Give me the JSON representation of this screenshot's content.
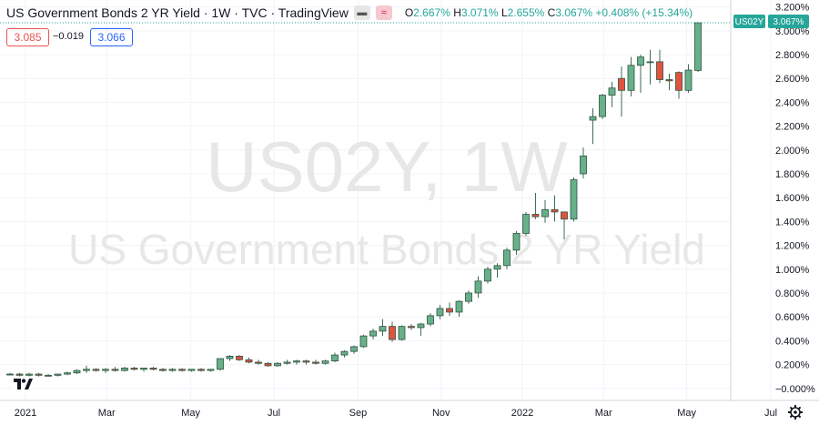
{
  "header": {
    "title": "US Government Bonds 2 YR Yield · 1W · TVC · TradingView",
    "ohlc": {
      "o_label": "O",
      "o": "2.667%",
      "h_label": "H",
      "h": "3.071%",
      "l_label": "L",
      "l": "2.655%",
      "c_label": "C",
      "c": "3.067%",
      "change": "+0.408% (+15.34%)"
    },
    "sell_price": "3.085",
    "spread": "−0.019",
    "buy_price": "3.066"
  },
  "watermark": {
    "symbol_line": "US02Y, 1W",
    "name_line": "US Government Bonds 2 YR Yield"
  },
  "price_tag": {
    "symbol": "US02Y",
    "value": "3.067%"
  },
  "colors": {
    "up": "#26a69a",
    "up_fill": "#4caf84",
    "down": "#ef5350",
    "tag": "#26a69a"
  },
  "icons": {
    "logo": "tradingview-logo-icon",
    "settings": "gear-icon"
  },
  "chart_data": {
    "type": "candlestick",
    "y_ticks": [
      "3.200%",
      "3.000%",
      "2.800%",
      "2.600%",
      "2.400%",
      "2.200%",
      "2.000%",
      "1.800%",
      "1.600%",
      "1.400%",
      "1.200%",
      "1.000%",
      "0.800%",
      "0.600%",
      "0.400%",
      "0.200%",
      "−0.000%"
    ],
    "x_ticks": [
      "2021",
      "Mar",
      "May",
      "Jul",
      "Sep",
      "Nov",
      "2022",
      "Mar",
      "May",
      "Jul"
    ],
    "ylim": [
      -0.04,
      3.22
    ],
    "candles": [
      [
        0.12,
        0.13,
        0.11,
        0.12
      ],
      [
        0.12,
        0.13,
        0.1,
        0.11
      ],
      [
        0.11,
        0.13,
        0.1,
        0.12
      ],
      [
        0.12,
        0.13,
        0.1,
        0.11
      ],
      [
        0.11,
        0.12,
        0.1,
        0.11
      ],
      [
        0.11,
        0.12,
        0.1,
        0.12
      ],
      [
        0.12,
        0.14,
        0.11,
        0.13
      ],
      [
        0.13,
        0.16,
        0.12,
        0.15
      ],
      [
        0.15,
        0.19,
        0.13,
        0.16
      ],
      [
        0.16,
        0.17,
        0.14,
        0.15
      ],
      [
        0.15,
        0.17,
        0.13,
        0.16
      ],
      [
        0.16,
        0.18,
        0.14,
        0.15
      ],
      [
        0.15,
        0.18,
        0.14,
        0.17
      ],
      [
        0.17,
        0.18,
        0.15,
        0.16
      ],
      [
        0.16,
        0.17,
        0.14,
        0.17
      ],
      [
        0.17,
        0.18,
        0.15,
        0.16
      ],
      [
        0.16,
        0.17,
        0.14,
        0.15
      ],
      [
        0.15,
        0.17,
        0.14,
        0.16
      ],
      [
        0.16,
        0.17,
        0.14,
        0.15
      ],
      [
        0.15,
        0.16,
        0.14,
        0.16
      ],
      [
        0.16,
        0.17,
        0.14,
        0.15
      ],
      [
        0.15,
        0.16,
        0.14,
        0.16
      ],
      [
        0.16,
        0.25,
        0.15,
        0.25
      ],
      [
        0.25,
        0.28,
        0.23,
        0.27
      ],
      [
        0.27,
        0.28,
        0.23,
        0.24
      ],
      [
        0.24,
        0.26,
        0.21,
        0.22
      ],
      [
        0.22,
        0.24,
        0.2,
        0.21
      ],
      [
        0.21,
        0.22,
        0.18,
        0.19
      ],
      [
        0.19,
        0.22,
        0.18,
        0.21
      ],
      [
        0.21,
        0.24,
        0.2,
        0.22
      ],
      [
        0.22,
        0.24,
        0.2,
        0.23
      ],
      [
        0.23,
        0.24,
        0.2,
        0.22
      ],
      [
        0.22,
        0.24,
        0.2,
        0.21
      ],
      [
        0.21,
        0.24,
        0.2,
        0.23
      ],
      [
        0.23,
        0.3,
        0.22,
        0.28
      ],
      [
        0.28,
        0.32,
        0.26,
        0.31
      ],
      [
        0.31,
        0.36,
        0.29,
        0.35
      ],
      [
        0.35,
        0.45,
        0.34,
        0.44
      ],
      [
        0.44,
        0.5,
        0.41,
        0.48
      ],
      [
        0.48,
        0.58,
        0.44,
        0.52
      ],
      [
        0.52,
        0.56,
        0.39,
        0.41
      ],
      [
        0.41,
        0.53,
        0.4,
        0.52
      ],
      [
        0.52,
        0.54,
        0.49,
        0.51
      ],
      [
        0.51,
        0.55,
        0.44,
        0.54
      ],
      [
        0.54,
        0.63,
        0.52,
        0.61
      ],
      [
        0.61,
        0.7,
        0.58,
        0.67
      ],
      [
        0.67,
        0.72,
        0.61,
        0.64
      ],
      [
        0.64,
        0.74,
        0.6,
        0.73
      ],
      [
        0.73,
        0.82,
        0.71,
        0.8
      ],
      [
        0.8,
        0.94,
        0.76,
        0.9
      ],
      [
        0.9,
        1.02,
        0.88,
        1.0
      ],
      [
        1.0,
        1.05,
        0.93,
        1.03
      ],
      [
        1.03,
        1.18,
        1.0,
        1.16
      ],
      [
        1.16,
        1.32,
        1.12,
        1.3
      ],
      [
        1.3,
        1.48,
        1.28,
        1.46
      ],
      [
        1.46,
        1.64,
        1.42,
        1.44
      ],
      [
        1.44,
        1.58,
        1.39,
        1.5
      ],
      [
        1.5,
        1.62,
        1.4,
        1.48
      ],
      [
        1.48,
        1.48,
        1.25,
        1.42
      ],
      [
        1.42,
        1.77,
        1.4,
        1.75
      ],
      [
        1.8,
        2.02,
        1.76,
        1.95
      ],
      [
        2.25,
        2.35,
        2.05,
        2.28
      ],
      [
        2.28,
        2.47,
        2.26,
        2.46
      ],
      [
        2.46,
        2.57,
        2.36,
        2.52
      ],
      [
        2.6,
        2.7,
        2.28,
        2.5
      ],
      [
        2.5,
        2.78,
        2.45,
        2.71
      ],
      [
        2.71,
        2.8,
        2.48,
        2.78
      ],
      [
        2.74,
        2.84,
        2.55,
        2.74
      ],
      [
        2.74,
        2.84,
        2.56,
        2.59
      ],
      [
        2.59,
        2.64,
        2.5,
        2.58
      ],
      [
        2.65,
        2.66,
        2.43,
        2.5
      ],
      [
        2.5,
        2.72,
        2.48,
        2.67
      ],
      [
        2.667,
        3.071,
        2.655,
        3.067
      ]
    ]
  }
}
